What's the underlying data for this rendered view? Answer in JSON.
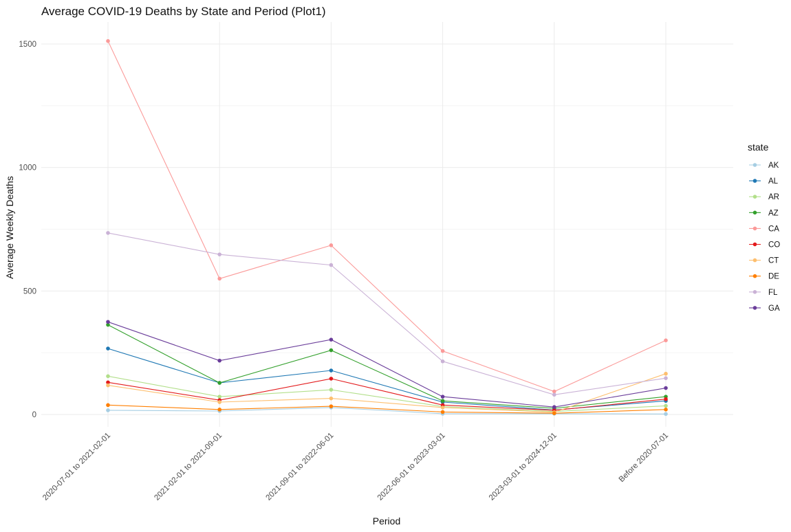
{
  "chart_data": {
    "type": "line",
    "title": "Average COVID-19 Deaths by State and Period (Plot1)",
    "xlabel": "Period",
    "ylabel": "Average Weekly Deaths",
    "ylim": [
      -45,
      1590
    ],
    "yticks": [
      0,
      500,
      1000,
      1500
    ],
    "grid": true,
    "legend": {
      "title": "state",
      "position": "right"
    },
    "categories": [
      "2020-07-01 to 2021-02-01",
      "2021-02-01 to 2021-09-01",
      "2021-09-01 to 2022-06-01",
      "2022-06-01 to 2023-03-01",
      "2023-03-01 to 2024-12-01",
      "Before 2020-07-01"
    ],
    "series": [
      {
        "name": "AK",
        "color": "#a6cee3",
        "values": [
          17,
          14,
          28,
          3,
          3,
          2
        ]
      },
      {
        "name": "AL",
        "color": "#1f78b4",
        "values": [
          267,
          128,
          178,
          50,
          18,
          55
        ]
      },
      {
        "name": "AR",
        "color": "#b2df8a",
        "values": [
          155,
          72,
          100,
          32,
          12,
          35
        ]
      },
      {
        "name": "AZ",
        "color": "#33a02c",
        "values": [
          363,
          128,
          260,
          55,
          25,
          72
        ]
      },
      {
        "name": "CA",
        "color": "#fb9a99",
        "values": [
          1512,
          550,
          685,
          257,
          93,
          300
        ]
      },
      {
        "name": "CO",
        "color": "#e31a1c",
        "values": [
          130,
          58,
          145,
          38,
          17,
          62
        ]
      },
      {
        "name": "CT",
        "color": "#fdbf6f",
        "values": [
          118,
          50,
          65,
          28,
          9,
          165
        ]
      },
      {
        "name": "DE",
        "color": "#ff7f00",
        "values": [
          38,
          20,
          33,
          10,
          5,
          20
        ]
      },
      {
        "name": "FL",
        "color": "#cab2d6",
        "values": [
          735,
          648,
          605,
          215,
          80,
          147
        ]
      },
      {
        "name": "GA",
        "color": "#6a3d9a",
        "values": [
          375,
          218,
          303,
          72,
          30,
          107
        ]
      }
    ]
  }
}
